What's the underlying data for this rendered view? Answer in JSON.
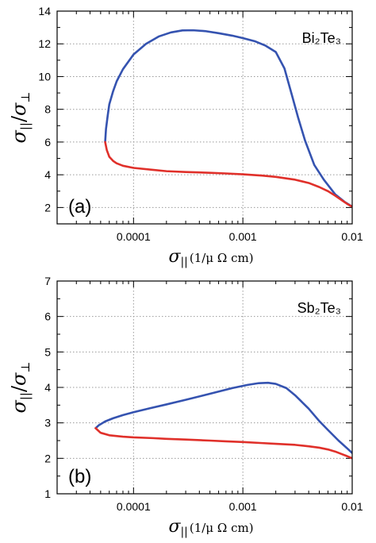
{
  "chart_data": [
    {
      "panel": "a",
      "type": "line",
      "x_scale": "log",
      "xlim": [
        2e-05,
        0.01
      ],
      "ylim": [
        1,
        14
      ],
      "xticks": [
        0.0001,
        0.001,
        0.01
      ],
      "xtick_labels": [
        "0.0001",
        "0.001",
        "0.01"
      ],
      "yticks": [
        2,
        4,
        6,
        8,
        10,
        12,
        14
      ],
      "ytick_labels": [
        "2",
        "4",
        "6",
        "8",
        "10",
        "12",
        "14"
      ],
      "grid": true,
      "annotation": "Bi₂Te₃",
      "panel_label": "(a)",
      "xlabel": {
        "sigma": "σ",
        "sub": "||",
        "unit": "(1/μ Ω cm)"
      },
      "ylabel": {
        "num": "σ",
        "num_sub": "||",
        "den": "σ",
        "den_sub": "⊥"
      },
      "series": [
        {
          "color": "#3553b0",
          "x": [
            5.5e-05,
            5.6e-05,
            5.8e-05,
            6e-05,
            6.5e-05,
            7e-05,
            8e-05,
            0.0001,
            0.00013,
            0.00017,
            0.00022,
            0.00028,
            0.00035,
            0.00045,
            0.0006,
            0.0008,
            0.001,
            0.0013,
            0.0016,
            0.002,
            0.0024,
            0.0028,
            0.0032,
            0.0037,
            0.0045,
            0.0055,
            0.007,
            0.0085,
            0.01
          ],
          "y": [
            6.0,
            6.8,
            7.6,
            8.3,
            9.1,
            9.7,
            10.45,
            11.35,
            12.0,
            12.45,
            12.7,
            12.82,
            12.83,
            12.78,
            12.65,
            12.5,
            12.35,
            12.15,
            11.9,
            11.5,
            10.5,
            8.9,
            7.5,
            6.1,
            4.6,
            3.7,
            2.8,
            2.35,
            2.05
          ]
        },
        {
          "color": "#e0302a",
          "x": [
            5.5e-05,
            5.7e-05,
            6e-05,
            6.5e-05,
            7e-05,
            8e-05,
            0.0001,
            0.00015,
            0.0002,
            0.0003,
            0.0005,
            0.0007,
            0.001,
            0.0015,
            0.002,
            0.003,
            0.004,
            0.005,
            0.006,
            0.007,
            0.008,
            0.009,
            0.01
          ],
          "y": [
            6.0,
            5.5,
            5.1,
            4.85,
            4.7,
            4.55,
            4.42,
            4.3,
            4.22,
            4.17,
            4.12,
            4.08,
            4.03,
            3.95,
            3.87,
            3.7,
            3.5,
            3.25,
            3.0,
            2.72,
            2.45,
            2.22,
            2.05
          ]
        }
      ]
    },
    {
      "panel": "b",
      "type": "line",
      "x_scale": "log",
      "xlim": [
        2e-05,
        0.01
      ],
      "ylim": [
        1,
        7
      ],
      "xticks": [
        0.0001,
        0.001,
        0.01
      ],
      "xtick_labels": [
        "0.0001",
        "0.001",
        "0.01"
      ],
      "yticks": [
        1,
        2,
        3,
        4,
        5,
        6,
        7
      ],
      "ytick_labels": [
        "1",
        "2",
        "3",
        "4",
        "5",
        "6",
        "7"
      ],
      "grid": true,
      "annotation": "Sb₂Te₃",
      "panel_label": "(b)",
      "xlabel": {
        "sigma": "σ",
        "sub": "||",
        "unit": "(1/μ Ω cm)"
      },
      "ylabel": {
        "num": "σ",
        "num_sub": "||",
        "den": "σ",
        "den_sub": "⊥"
      },
      "series": [
        {
          "color": "#3553b0",
          "x": [
            4.5e-05,
            4.8e-05,
            5.5e-05,
            6.5e-05,
            8e-05,
            0.0001,
            0.00014,
            0.0002,
            0.0003,
            0.0005,
            0.0008,
            0.0011,
            0.0014,
            0.0017,
            0.002,
            0.0025,
            0.003,
            0.004,
            0.005,
            0.006,
            0.0075,
            0.009,
            0.01
          ],
          "y": [
            2.85,
            2.93,
            3.04,
            3.13,
            3.22,
            3.3,
            3.41,
            3.52,
            3.65,
            3.82,
            3.98,
            4.07,
            4.12,
            4.13,
            4.1,
            3.98,
            3.78,
            3.4,
            3.05,
            2.8,
            2.5,
            2.28,
            2.15
          ]
        },
        {
          "color": "#e0302a",
          "x": [
            4.5e-05,
            5e-05,
            6e-05,
            8e-05,
            0.0001,
            0.00015,
            0.0002,
            0.0003,
            0.0005,
            0.0007,
            0.001,
            0.0015,
            0.002,
            0.003,
            0.004,
            0.005,
            0.006,
            0.007,
            0.008,
            0.009,
            0.01
          ],
          "y": [
            2.85,
            2.72,
            2.65,
            2.61,
            2.59,
            2.57,
            2.55,
            2.53,
            2.5,
            2.48,
            2.46,
            2.43,
            2.41,
            2.38,
            2.34,
            2.3,
            2.25,
            2.19,
            2.12,
            2.06,
            2.0
          ]
        }
      ]
    }
  ]
}
